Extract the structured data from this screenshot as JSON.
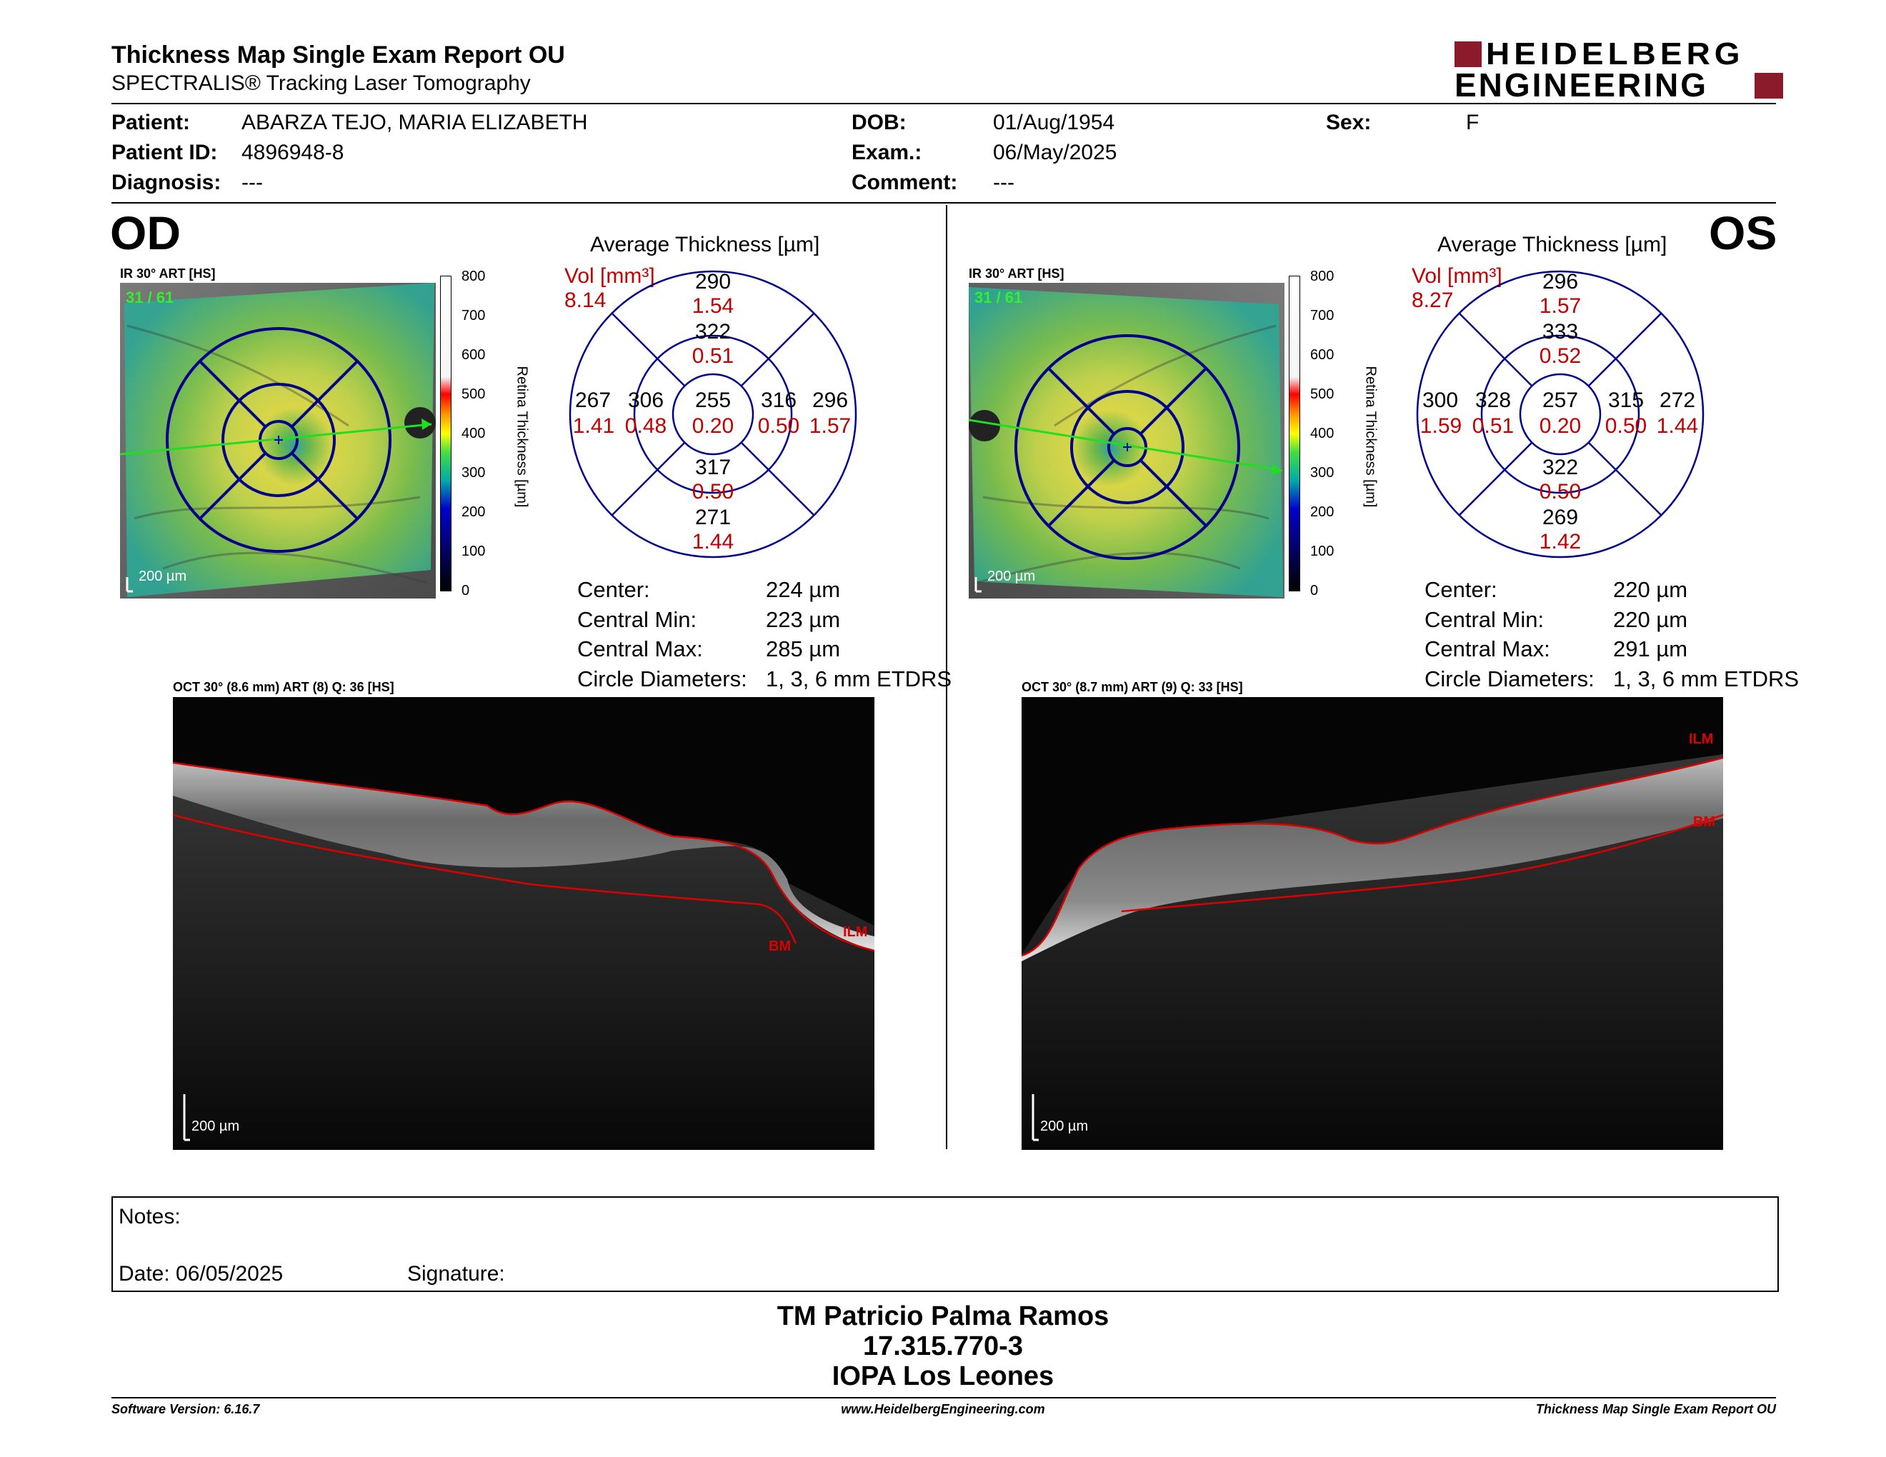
{
  "header": {
    "title": "Thickness Map Single Exam Report OU",
    "subtitle": "SPECTRALIS® Tracking Laser Tomography",
    "brand_line1": "HEIDELBERG",
    "brand_line2": "ENGINEERING",
    "brand_color": "#8b1a2b"
  },
  "patient": {
    "patient_label": "Patient:",
    "patient_value": "ABARZA TEJO, MARIA ELIZABETH",
    "id_label": "Patient ID:",
    "id_value": "4896948-8",
    "diagnosis_label": "Diagnosis:",
    "diagnosis_value": "---",
    "dob_label": "DOB:",
    "dob_value": "01/Aug/1954",
    "exam_label": "Exam.:",
    "exam_value": "06/May/2025",
    "comment_label": "Comment:",
    "comment_value": "---",
    "sex_label": "Sex:",
    "sex_value": "F"
  },
  "od": {
    "eye": "OD",
    "ir_label": "IR 30° ART [HS]",
    "frames": "31 / 61",
    "scale_bar": "200 µm",
    "oct_label": "OCT 30° (8.6 mm) ART (8) Q: 36 [HS]",
    "oct_scale": "200 µm",
    "oct_layer_ilm": "ILM",
    "oct_layer_bm": "BM",
    "avg_title": "Average Thickness [µm]",
    "vol_label": "Vol [mm³]",
    "vol_total": "8.14",
    "sectors": {
      "outer_sup": "290",
      "outer_sup_vol": "1.54",
      "inner_sup": "322",
      "inner_sup_vol": "0.51",
      "outer_left": "267",
      "outer_left_vol": "1.41",
      "inner_left": "306",
      "inner_left_vol": "0.48",
      "center": "255",
      "center_vol": "0.20",
      "inner_right": "316",
      "inner_right_vol": "0.50",
      "outer_right": "296",
      "outer_right_vol": "1.57",
      "inner_inf": "317",
      "inner_inf_vol": "0.50",
      "outer_inf": "271",
      "outer_inf_vol": "1.44"
    },
    "stats": {
      "center_label": "Center:",
      "center_value": "224 µm",
      "min_label": "Central Min:",
      "min_value": "223 µm",
      "max_label": "Central Max:",
      "max_value": "285 µm",
      "diam_label": "Circle Diameters:",
      "diam_value": "1, 3, 6 mm ETDRS"
    }
  },
  "os": {
    "eye": "OS",
    "ir_label": "IR 30° ART [HS]",
    "frames": "31 / 61",
    "scale_bar": "200 µm",
    "oct_label": "OCT 30° (8.7 mm) ART (9) Q: 33 [HS]",
    "oct_scale": "200 µm",
    "oct_layer_ilm": "ILM",
    "oct_layer_bm": "BM",
    "avg_title": "Average Thickness [µm]",
    "vol_label": "Vol [mm³]",
    "vol_total": "8.27",
    "sectors": {
      "outer_sup": "296",
      "outer_sup_vol": "1.57",
      "inner_sup": "333",
      "inner_sup_vol": "0.52",
      "outer_left": "300",
      "outer_left_vol": "1.59",
      "inner_left": "328",
      "inner_left_vol": "0.51",
      "center": "257",
      "center_vol": "0.20",
      "inner_right": "315",
      "inner_right_vol": "0.50",
      "outer_right": "272",
      "outer_right_vol": "1.44",
      "inner_inf": "322",
      "inner_inf_vol": "0.50",
      "outer_inf": "269",
      "outer_inf_vol": "1.42"
    },
    "stats": {
      "center_label": "Center:",
      "center_value": "220 µm",
      "min_label": "Central Min:",
      "min_value": "220 µm",
      "max_label": "Central Max:",
      "max_value": "291 µm",
      "diam_label": "Circle Diameters:",
      "diam_value": "1, 3, 6 mm ETDRS"
    }
  },
  "colorbar": {
    "ticks": [
      "800",
      "700",
      "600",
      "500",
      "400",
      "300",
      "200",
      "100",
      "0"
    ],
    "label": "Retina Thickness [µm]"
  },
  "notes": {
    "notes_label": "Notes:",
    "date_label": "Date: 06/05/2025",
    "signature_label": "Signature:"
  },
  "signature_block": {
    "name": "TM Patricio Palma Ramos",
    "rut": "17.315.770-3",
    "clinic": "IOPA Los Leones"
  },
  "footer": {
    "software": "Software Version: 6.16.7",
    "website": "www.HeidelbergEngineering.com",
    "report": "Thickness Map Single Exam Report OU"
  }
}
